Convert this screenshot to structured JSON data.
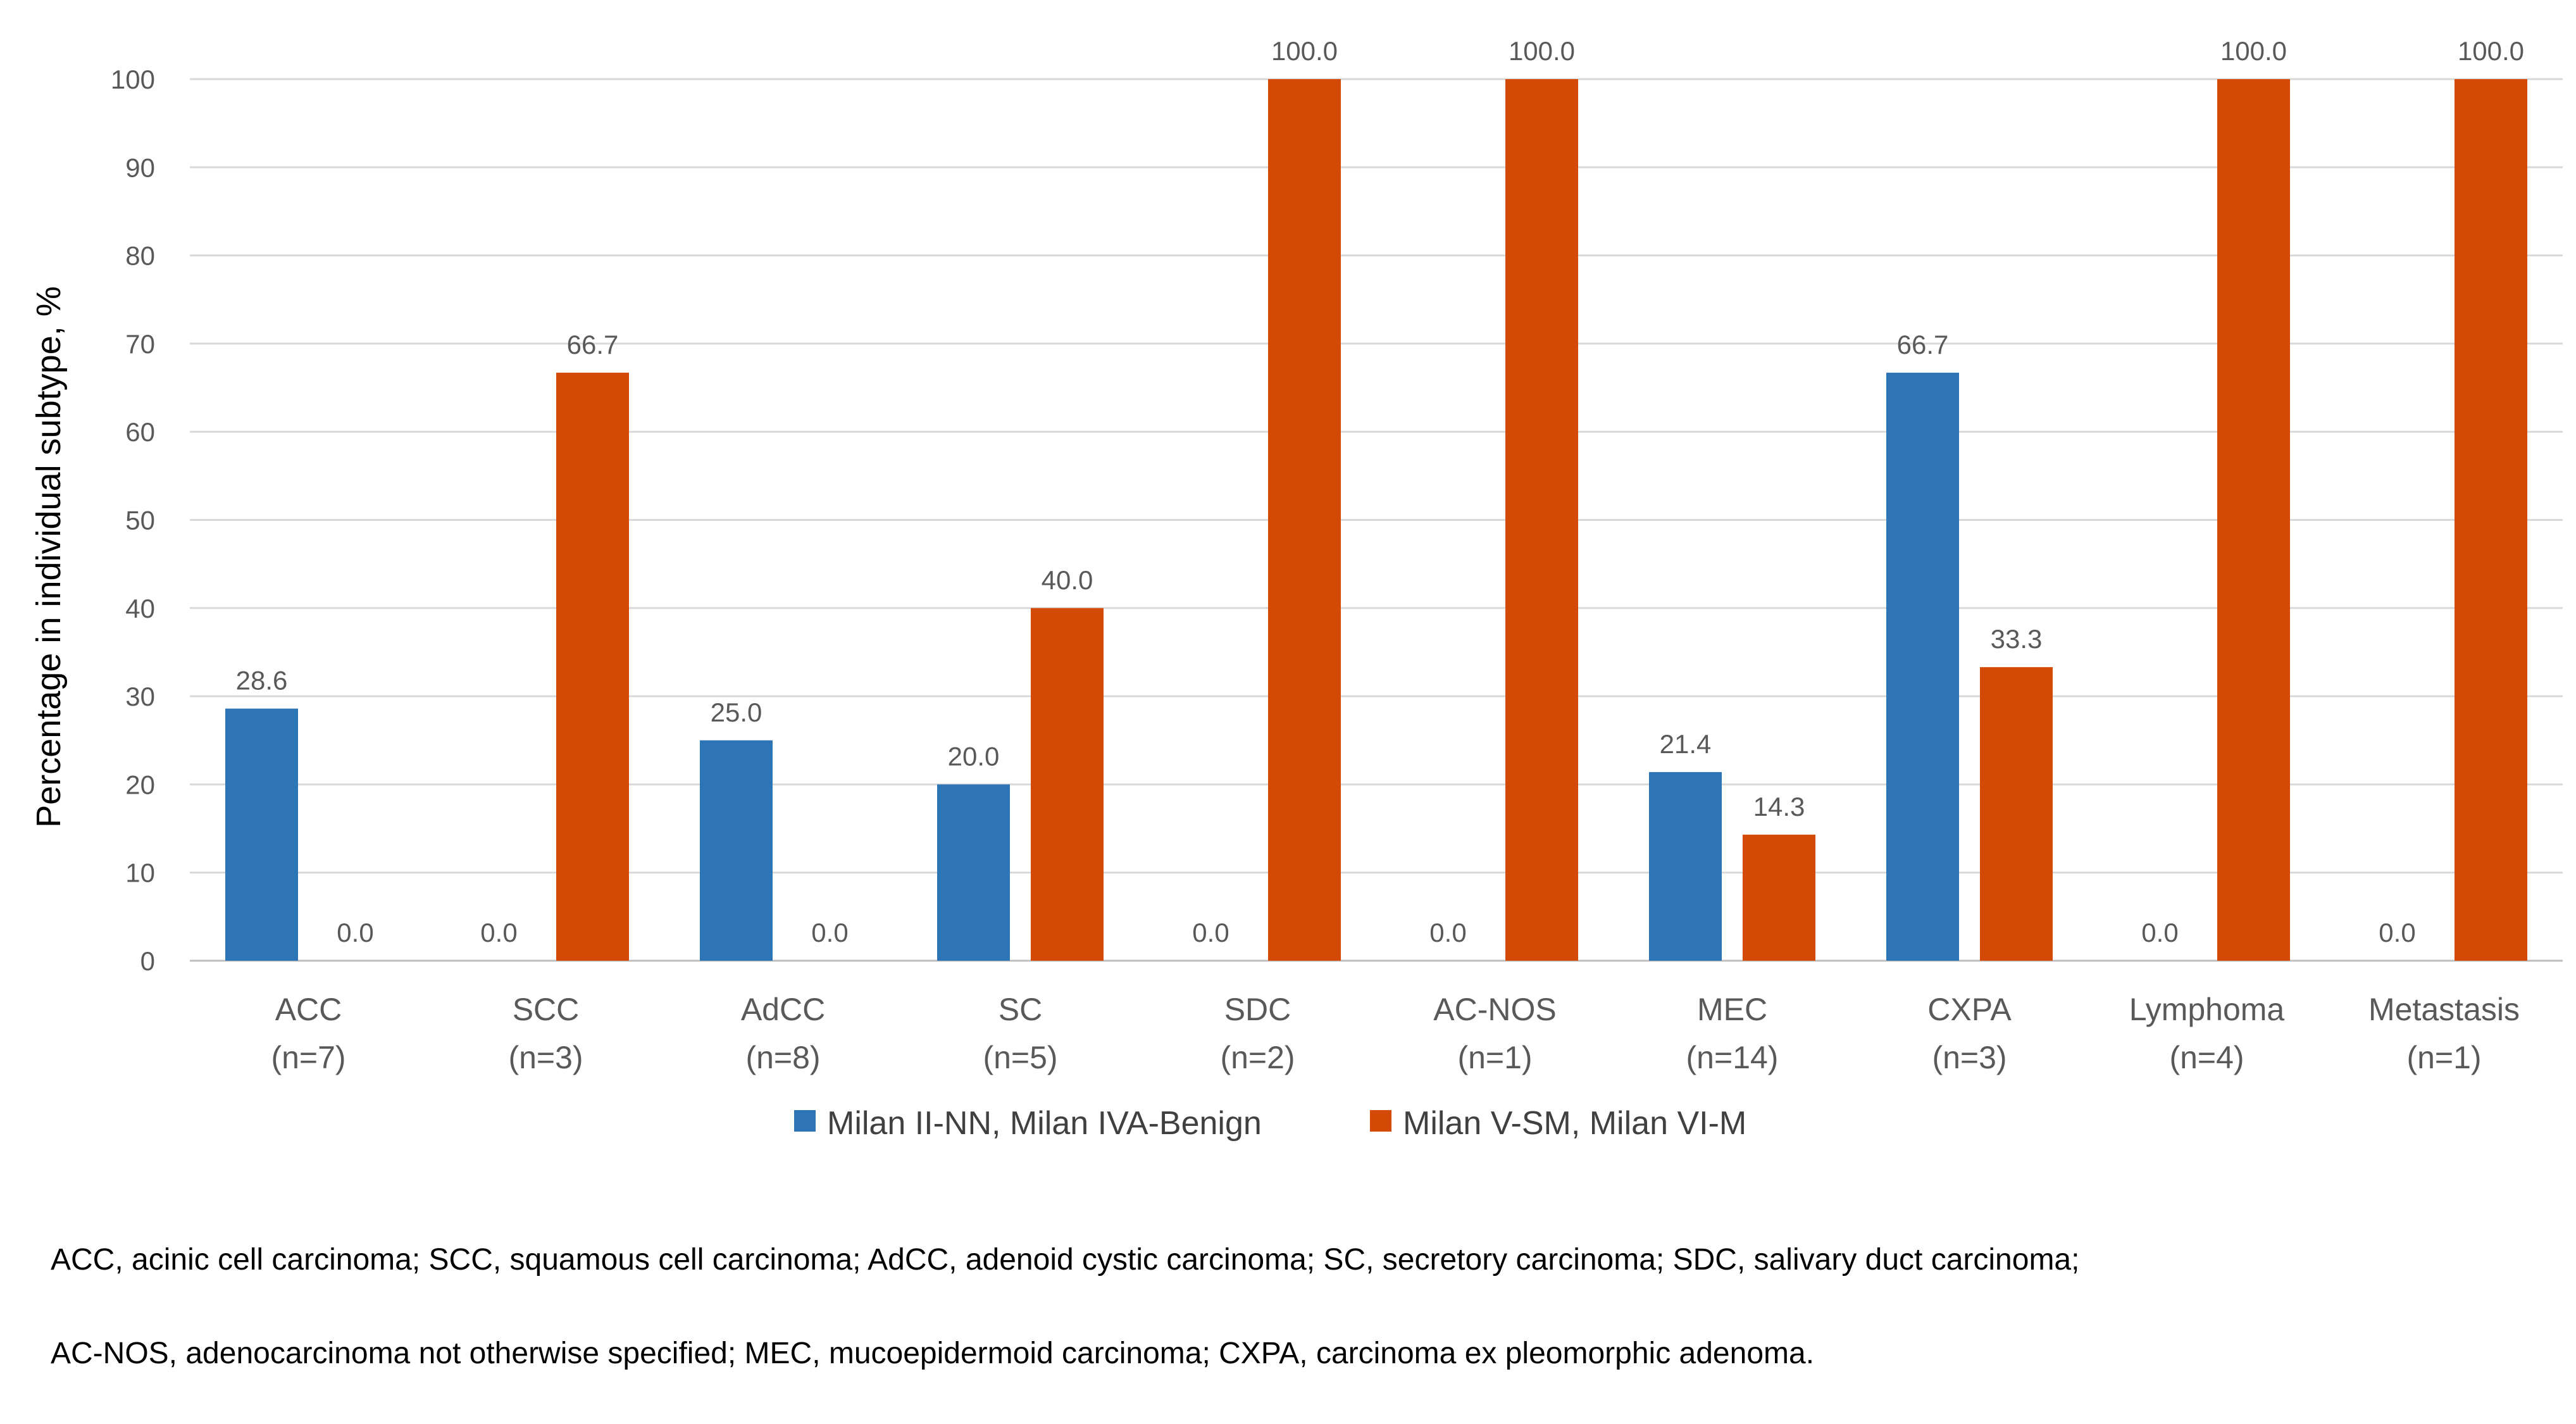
{
  "chart_data": {
    "type": "bar",
    "title": "",
    "xlabel": "",
    "ylabel": "Percentage in individual subtype, %",
    "ylim": [
      0,
      100
    ],
    "yticks": [
      0,
      10,
      20,
      30,
      40,
      50,
      60,
      70,
      80,
      90,
      100
    ],
    "grid": true,
    "legend_position": "bottom",
    "categories": [
      {
        "name": "ACC",
        "n": "(n=7)"
      },
      {
        "name": "SCC",
        "n": "(n=3)"
      },
      {
        "name": "AdCC",
        "n": "(n=8)"
      },
      {
        "name": "SC",
        "n": "(n=5)"
      },
      {
        "name": "SDC",
        "n": "(n=2)"
      },
      {
        "name": "AC-NOS",
        "n": "(n=1)"
      },
      {
        "name": "MEC",
        "n": "(n=14)"
      },
      {
        "name": "CXPA",
        "n": "(n=3)"
      },
      {
        "name": "Lymphoma",
        "n": "(n=4)"
      },
      {
        "name": "Metastasis",
        "n": "(n=1)"
      }
    ],
    "series": [
      {
        "name": "Milan II-NN, Milan IVA-Benign",
        "color": "#2e75b6",
        "values": [
          28.6,
          0.0,
          25.0,
          20.0,
          0.0,
          0.0,
          21.4,
          66.7,
          0.0,
          0.0
        ]
      },
      {
        "name": "Milan V-SM, Milan VI-M",
        "color": "#d24a04",
        "values": [
          0.0,
          66.7,
          0.0,
          40.0,
          100.0,
          100.0,
          14.3,
          33.3,
          100.0,
          100.0
        ]
      }
    ]
  },
  "footnote": {
    "line1": "ACC, acinic cell carcinoma; SCC, squamous cell carcinoma; AdCC, adenoid cystic carcinoma; SC, secretory carcinoma; SDC, salivary duct carcinoma;",
    "line2": "AC-NOS, adenocarcinoma not otherwise specified; MEC, mucoepidermoid carcinoma; CXPA, carcinoma ex pleomorphic adenoma."
  }
}
